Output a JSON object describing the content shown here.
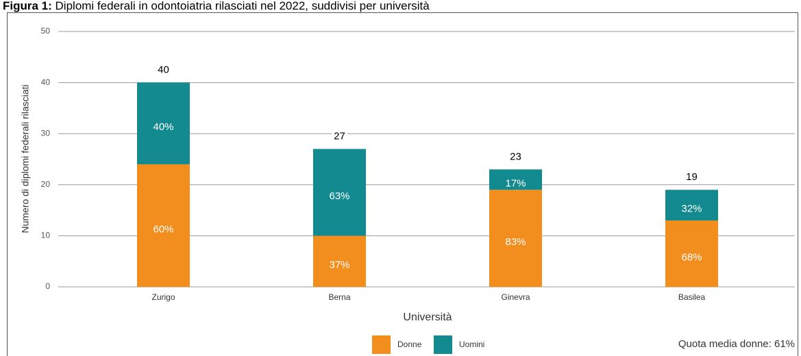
{
  "chart_data": {
    "type": "stacked_bar",
    "title_prefix": "Figura 1:",
    "title": "Diplomi federali in odontoiatria rilasciati nel 2022, suddivisi per università",
    "y_label": "Numero di diplomi federali rilasciati",
    "x_label": "Università",
    "categories": [
      "Zurigo",
      "Berna",
      "Ginevra",
      "Basilea"
    ],
    "series": [
      {
        "name": "Donne",
        "color": "#f28e1e",
        "values": [
          24,
          10,
          19,
          13
        ],
        "share_labels": [
          "60%",
          "37%",
          "83%",
          "68%"
        ]
      },
      {
        "name": "Uomini",
        "color": "#138a8f",
        "values": [
          16,
          17,
          4,
          6
        ],
        "share_labels": [
          "40%",
          "63%",
          "17%",
          "32%"
        ]
      }
    ],
    "totals": [
      40,
      27,
      23,
      19
    ],
    "ylim": [
      0,
      50
    ],
    "yticks": [
      0,
      10,
      20,
      30,
      40,
      50
    ],
    "grid": true,
    "annotation": "Quota media donne: 61%"
  }
}
